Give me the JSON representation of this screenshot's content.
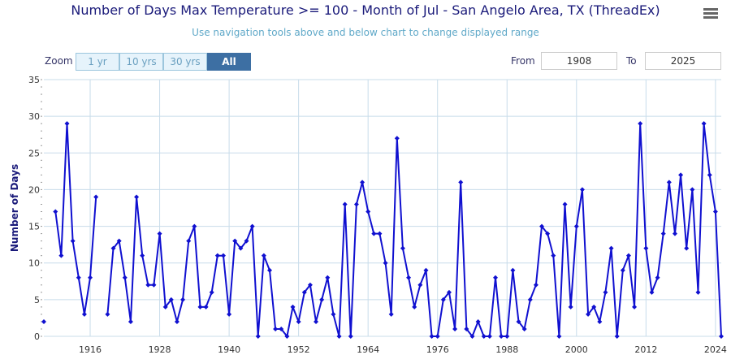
{
  "title": "Number of Days Max Temperature >= 100 - Month of Jul - San Angelo Area, TX (ThreadEx)",
  "subtitle": "Use navigation tools above and below chart to change displayed range",
  "zoom": {
    "label": "Zoom",
    "buttons": [
      "1 yr",
      "10 yrs",
      "30 yrs",
      "All"
    ],
    "active": "All"
  },
  "range": {
    "from_label": "From",
    "from": "1908",
    "to_label": "To",
    "to": "2025"
  },
  "menu_icon": "hamburger-icon",
  "colors": {
    "line": "#1010d0",
    "grid": "#c8dcea"
  },
  "chart_data": {
    "type": "line",
    "title": "Number of Days Max Temperature >= 100 - Month of Jul - San Angelo Area, TX (ThreadEx)",
    "xlabel": "",
    "ylabel": "Number of Days",
    "xlim": [
      1908,
      2025
    ],
    "ylim": [
      0,
      35
    ],
    "yticks": [
      0,
      5,
      10,
      15,
      20,
      25,
      30,
      35
    ],
    "xticks": [
      1916,
      1928,
      1940,
      1952,
      1964,
      1976,
      1988,
      2000,
      2012,
      2024
    ],
    "grid": true,
    "x_start": 1908,
    "values": [
      2,
      null,
      17,
      11,
      29,
      13,
      8,
      3,
      8,
      19,
      null,
      3,
      12,
      13,
      8,
      2,
      19,
      11,
      7,
      7,
      14,
      4,
      5,
      2,
      5,
      13,
      15,
      4,
      4,
      6,
      11,
      11,
      3,
      13,
      12,
      13,
      15,
      0,
      11,
      9,
      1,
      1,
      0,
      4,
      2,
      6,
      7,
      2,
      5,
      8,
      3,
      0,
      18,
      0,
      18,
      21,
      17,
      14,
      14,
      10,
      3,
      27,
      12,
      8,
      4,
      7,
      9,
      0,
      0,
      5,
      6,
      1,
      21,
      1,
      0,
      2,
      0,
      0,
      8,
      0,
      0,
      9,
      2,
      1,
      5,
      7,
      15,
      14,
      11,
      0,
      18,
      4,
      15,
      20,
      3,
      4,
      2,
      6,
      12,
      0,
      9,
      11,
      4,
      29,
      12,
      6,
      8,
      14,
      21,
      14,
      22,
      12,
      20,
      6,
      29,
      22,
      17,
      0
    ]
  }
}
